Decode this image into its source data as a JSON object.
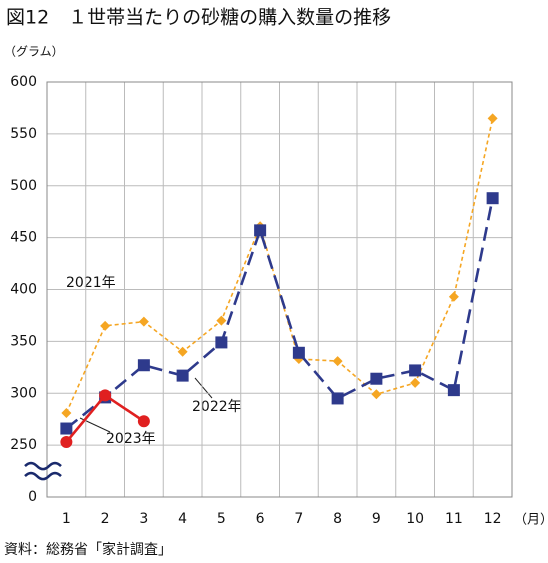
{
  "chart_data": {
    "type": "line",
    "title": "図12　１世帯当たりの砂糖の購入数量の推移",
    "y_unit": "（グラム）",
    "x_unit": "（月）",
    "source": "資料：総務省「家計調査」",
    "categories": [
      "1",
      "2",
      "3",
      "4",
      "5",
      "6",
      "7",
      "8",
      "9",
      "10",
      "11",
      "12"
    ],
    "series": [
      {
        "name": "2021年",
        "color": "#f5a623",
        "line_style": "dotted",
        "marker": "diamond",
        "values": [
          281,
          365,
          369,
          340,
          370,
          461,
          333,
          331,
          299,
          310,
          393,
          565
        ]
      },
      {
        "name": "2022年",
        "color": "#2e3a8c",
        "line_style": "dashed",
        "marker": "square",
        "values": [
          266,
          296,
          327,
          317,
          349,
          457,
          339,
          295,
          314,
          322,
          303,
          488
        ]
      },
      {
        "name": "2023年",
        "color": "#e02020",
        "line_style": "solid",
        "marker": "circle",
        "values": [
          253,
          298,
          273,
          null,
          null,
          null,
          null,
          null,
          null,
          null,
          null,
          null
        ]
      }
    ],
    "ylim": [
      0,
      600
    ],
    "yticks": [
      0,
      250,
      300,
      350,
      400,
      450,
      500,
      550,
      600
    ],
    "axis_break": true,
    "grid": true
  }
}
